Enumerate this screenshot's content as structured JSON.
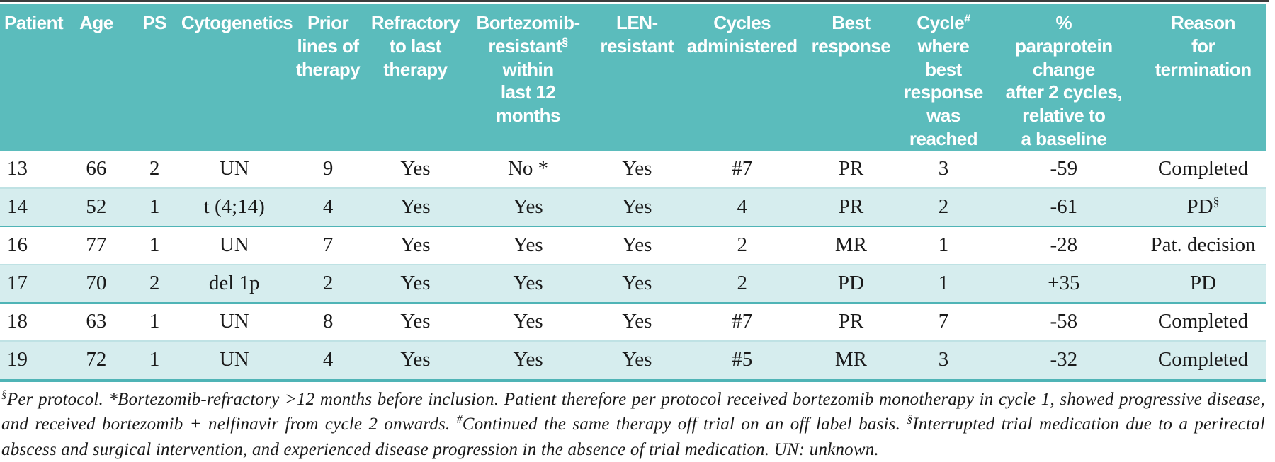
{
  "figure_type": "clinical-trial-patient-table",
  "colors": {
    "header_bg": "#5bbcbc",
    "band_bg": "#d6edee",
    "band_rule": "#4fb4b6",
    "band_rule_top": "#bfe2e4",
    "top_rule": "#3d3d3d",
    "header_text": "#ffffff",
    "body_text": "#1a1a1a"
  },
  "table": {
    "columns": [
      {
        "id": "patient",
        "width": "5.0%",
        "align": "left",
        "header_lines": [
          "Patient"
        ]
      },
      {
        "id": "age",
        "width": "5.2%",
        "align": "center",
        "header_lines": [
          "Age"
        ]
      },
      {
        "id": "ps",
        "width": "4.0%",
        "align": "center",
        "header_lines": [
          "PS"
        ]
      },
      {
        "id": "cytogenetics",
        "width": "8.6%",
        "align": "center",
        "header_lines": [
          "Cytogenetics"
        ]
      },
      {
        "id": "prior-lines",
        "width": "6.2%",
        "align": "center",
        "header_lines": [
          "Prior",
          "lines of",
          "therapy"
        ]
      },
      {
        "id": "refractory",
        "width": "7.6%",
        "align": "center",
        "header_lines": [
          "Refractory",
          "to last",
          "therapy"
        ]
      },
      {
        "id": "bortezomib-resistant",
        "width": "10.2%",
        "align": "center",
        "header_lines": [
          "Bortezomib-",
          {
            "t": "resistant",
            "s": "§"
          },
          "within",
          "last 12",
          "months"
        ]
      },
      {
        "id": "len-resistant",
        "width": "7.0%",
        "align": "center",
        "header_lines": [
          "LEN-",
          "resistant"
        ]
      },
      {
        "id": "cycles",
        "width": "9.6%",
        "align": "center",
        "header_lines": [
          "Cycles",
          "administered"
        ]
      },
      {
        "id": "best-response",
        "width": "7.6%",
        "align": "center",
        "header_lines": [
          "Best",
          "response"
        ]
      },
      {
        "id": "cycle-best",
        "width": "7.0%",
        "align": "center",
        "header_lines": [
          {
            "t": "Cycle",
            "s": "#"
          },
          "where",
          "best",
          "response",
          "was",
          "reached"
        ]
      },
      {
        "id": "paraprotein",
        "width": "12.0%",
        "align": "center",
        "header_lines": [
          "%",
          "paraprotein",
          "change",
          "after 2 cycles,",
          "relative to",
          "a baseline"
        ]
      },
      {
        "id": "termination",
        "width": "10.0%",
        "align": "center",
        "header_lines": [
          "Reason",
          "for",
          "termination"
        ]
      }
    ],
    "rows": [
      {
        "band": false,
        "cells": [
          "13",
          "66",
          "2",
          "UN",
          "9",
          "Yes",
          "No *",
          "Yes",
          "#7",
          "PR",
          "3",
          "-59",
          "Completed"
        ]
      },
      {
        "band": true,
        "cells": [
          "14",
          "52",
          "1",
          "t (4;14)",
          "4",
          "Yes",
          "Yes",
          "Yes",
          "4",
          "PR",
          "2",
          "-61",
          {
            "t": "PD",
            "s": "§"
          }
        ]
      },
      {
        "band": false,
        "cells": [
          "16",
          "77",
          "1",
          "UN",
          "7",
          "Yes",
          "Yes",
          "Yes",
          "2",
          "MR",
          "1",
          "-28",
          "Pat. decision"
        ]
      },
      {
        "band": true,
        "cells": [
          "17",
          "70",
          "2",
          "del 1p",
          "2",
          "Yes",
          "Yes",
          "Yes",
          "2",
          "PD",
          "1",
          "+35",
          "PD"
        ]
      },
      {
        "band": false,
        "cells": [
          "18",
          "63",
          "1",
          "UN",
          "8",
          "Yes",
          "Yes",
          "Yes",
          "#7",
          "PR",
          "7",
          "-58",
          "Completed"
        ]
      },
      {
        "band": true,
        "cells": [
          "19",
          "72",
          "1",
          "UN",
          "4",
          "Yes",
          "Yes",
          "Yes",
          "#5",
          "MR",
          "3",
          "-32",
          "Completed"
        ]
      }
    ],
    "footnote_segments": [
      {
        "sup": "§"
      },
      {
        "text": "Per protocol. *Bortezomib-refractory >12 months before inclusion. Patient therefore per protocol received bortezomib monotherapy in cycle 1, showed progressive disease, and received bortezomib + nelfinavir from cycle 2 onwards. "
      },
      {
        "sup": "#"
      },
      {
        "text": "Continued the same therapy off trial on an off label basis. "
      },
      {
        "sup": "§"
      },
      {
        "text": "Interrupted trial medication due to a perirectal abscess and surgical intervention, and experienced disease progression in the absence of trial medication. UN: unknown."
      }
    ]
  }
}
